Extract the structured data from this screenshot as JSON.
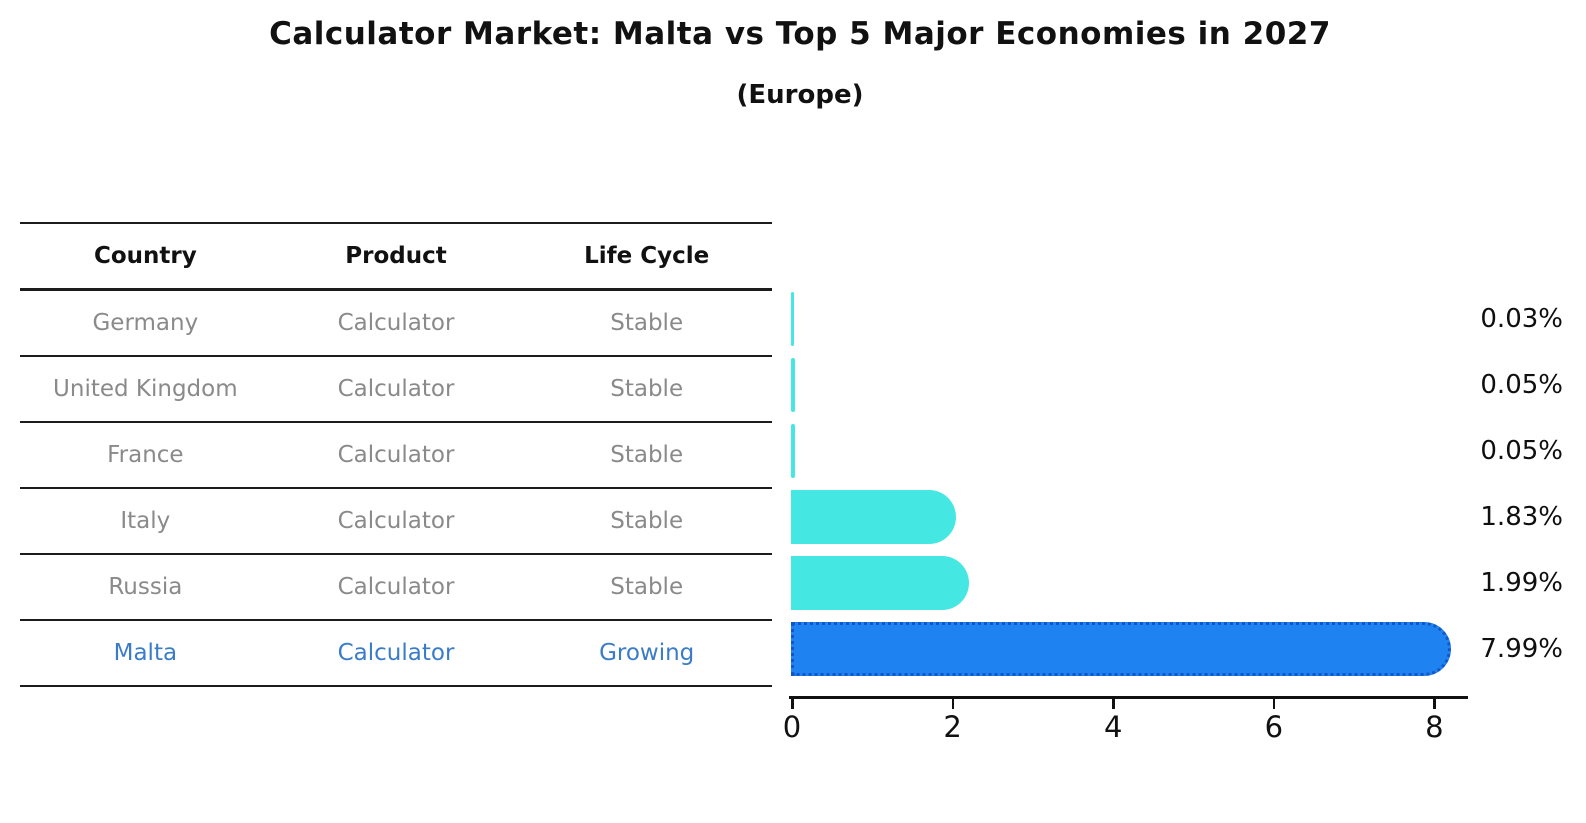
{
  "title": "Calculator Market: Malta vs Top 5 Major Economies in 2027",
  "subtitle": "(Europe)",
  "table": {
    "headers": [
      "Country",
      "Product",
      "Life Cycle"
    ],
    "rows": [
      {
        "country": "Germany",
        "product": "Calculator",
        "life_cycle": "Stable",
        "highlighted": false
      },
      {
        "country": "United Kingdom",
        "product": "Calculator",
        "life_cycle": "Stable",
        "highlighted": false
      },
      {
        "country": "France",
        "product": "Calculator",
        "life_cycle": "Stable",
        "highlighted": false
      },
      {
        "country": "Italy",
        "product": "Calculator",
        "life_cycle": "Stable",
        "highlighted": false
      },
      {
        "country": "Russia",
        "product": "Calculator",
        "life_cycle": "Stable",
        "highlighted": false
      },
      {
        "country": "Malta",
        "product": "Calculator",
        "life_cycle": "Growing",
        "highlighted": true
      }
    ]
  },
  "chart_data": {
    "type": "bar",
    "orientation": "horizontal",
    "title": "Calculator Market: Malta vs Top 5 Major Economies in 2027",
    "subtitle": "(Europe)",
    "categories": [
      "Germany",
      "United Kingdom",
      "France",
      "Italy",
      "Russia",
      "Malta"
    ],
    "values": [
      0.03,
      0.05,
      0.05,
      1.83,
      1.99,
      7.99
    ],
    "value_labels": [
      "0.03%",
      "0.05%",
      "0.05%",
      "1.83%",
      "1.99%",
      "7.99%"
    ],
    "x_tick_labels": [
      "0",
      "2",
      "4",
      "6",
      "8"
    ],
    "x_tick_values": [
      0,
      2,
      4,
      6,
      8
    ],
    "xlim": [
      0,
      8.4
    ],
    "grid": false,
    "legend": null,
    "bar_color": "#44e7e2",
    "highlight_bar_color": "#1e82f0",
    "highlight_border_color": "#1157c9",
    "highlight_index": 5
  },
  "colors": {
    "row_text": "#8a8a8a",
    "highlight_text": "#3b7cc9",
    "table_line": "#1c1c1c",
    "label_text": "#0f0f0f"
  }
}
